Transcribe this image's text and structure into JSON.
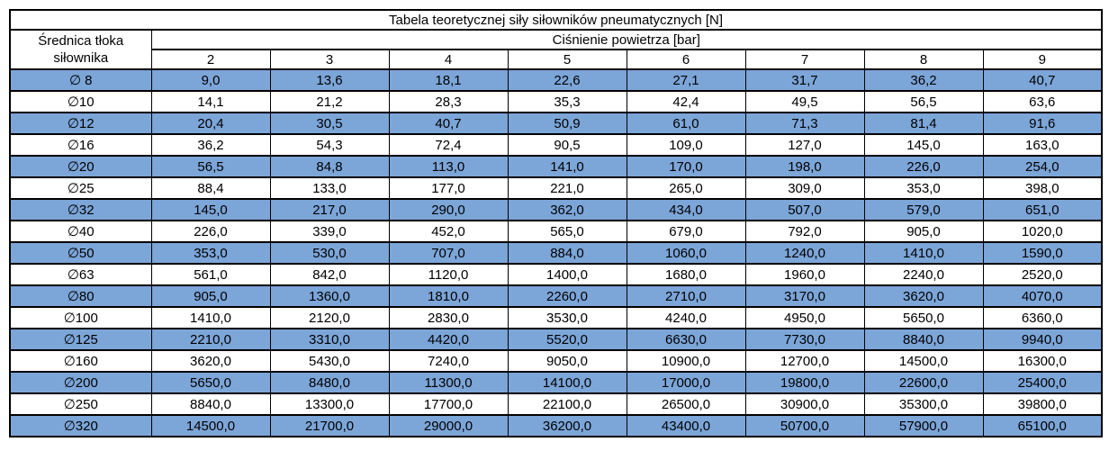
{
  "table": {
    "title": "Tabela teoretycznej siły siłowników pneumatycznych [N]",
    "row_header": {
      "line1": "Średnica tłoka",
      "line2": "siłownika"
    },
    "col_group_header": "Ciśnienie powietrza [bar]"
  },
  "colors": {
    "highlight_row": "#7CA5D8",
    "border": "#000000",
    "text": "#000000",
    "plain_row": "#ffffff"
  },
  "chart_data": {
    "type": "table",
    "title": "Tabela teoretycznej siły siłowników pneumatycznych [N]",
    "row_group_label": "Średnica tłoka siłownika",
    "column_group_label": "Ciśnienie powietrza [bar]",
    "columns": [
      "2",
      "3",
      "4",
      "5",
      "6",
      "7",
      "8",
      "9"
    ],
    "rows": [
      {
        "label": "∅ 8",
        "highlighted": true,
        "values": [
          "9,0",
          "13,6",
          "18,1",
          "22,6",
          "27,1",
          "31,7",
          "36,2",
          "40,7"
        ]
      },
      {
        "label": "∅10",
        "highlighted": false,
        "values": [
          "14,1",
          "21,2",
          "28,3",
          "35,3",
          "42,4",
          "49,5",
          "56,5",
          "63,6"
        ]
      },
      {
        "label": "∅12",
        "highlighted": true,
        "values": [
          "20,4",
          "30,5",
          "40,7",
          "50,9",
          "61,0",
          "71,3",
          "81,4",
          "91,6"
        ]
      },
      {
        "label": "∅16",
        "highlighted": false,
        "values": [
          "36,2",
          "54,3",
          "72,4",
          "90,5",
          "109,0",
          "127,0",
          "145,0",
          "163,0"
        ]
      },
      {
        "label": "∅20",
        "highlighted": true,
        "values": [
          "56,5",
          "84,8",
          "113,0",
          "141,0",
          "170,0",
          "198,0",
          "226,0",
          "254,0"
        ]
      },
      {
        "label": "∅25",
        "highlighted": false,
        "values": [
          "88,4",
          "133,0",
          "177,0",
          "221,0",
          "265,0",
          "309,0",
          "353,0",
          "398,0"
        ]
      },
      {
        "label": "∅32",
        "highlighted": true,
        "values": [
          "145,0",
          "217,0",
          "290,0",
          "362,0",
          "434,0",
          "507,0",
          "579,0",
          "651,0"
        ]
      },
      {
        "label": "∅40",
        "highlighted": false,
        "values": [
          "226,0",
          "339,0",
          "452,0",
          "565,0",
          "679,0",
          "792,0",
          "905,0",
          "1020,0"
        ]
      },
      {
        "label": "∅50",
        "highlighted": true,
        "values": [
          "353,0",
          "530,0",
          "707,0",
          "884,0",
          "1060,0",
          "1240,0",
          "1410,0",
          "1590,0"
        ]
      },
      {
        "label": "∅63",
        "highlighted": false,
        "values": [
          "561,0",
          "842,0",
          "1120,0",
          "1400,0",
          "1680,0",
          "1960,0",
          "2240,0",
          "2520,0"
        ]
      },
      {
        "label": "∅80",
        "highlighted": true,
        "values": [
          "905,0",
          "1360,0",
          "1810,0",
          "2260,0",
          "2710,0",
          "3170,0",
          "3620,0",
          "4070,0"
        ]
      },
      {
        "label": "∅100",
        "highlighted": false,
        "values": [
          "1410,0",
          "2120,0",
          "2830,0",
          "3530,0",
          "4240,0",
          "4950,0",
          "5650,0",
          "6360,0"
        ]
      },
      {
        "label": "∅125",
        "highlighted": true,
        "values": [
          "2210,0",
          "3310,0",
          "4420,0",
          "5520,0",
          "6630,0",
          "7730,0",
          "8840,0",
          "9940,0"
        ]
      },
      {
        "label": "∅160",
        "highlighted": false,
        "values": [
          "3620,0",
          "5430,0",
          "7240,0",
          "9050,0",
          "10900,0",
          "12700,0",
          "14500,0",
          "16300,0"
        ]
      },
      {
        "label": "∅200",
        "highlighted": true,
        "values": [
          "5650,0",
          "8480,0",
          "11300,0",
          "14100,0",
          "17000,0",
          "19800,0",
          "22600,0",
          "25400,0"
        ]
      },
      {
        "label": "∅250",
        "highlighted": false,
        "values": [
          "8840,0",
          "13300,0",
          "17700,0",
          "22100,0",
          "26500,0",
          "30900,0",
          "35300,0",
          "39800,0"
        ]
      },
      {
        "label": "∅320",
        "highlighted": true,
        "values": [
          "14500,0",
          "21700,0",
          "29000,0",
          "36200,0",
          "43400,0",
          "50700,0",
          "57900,0",
          "65100,0"
        ]
      }
    ]
  }
}
